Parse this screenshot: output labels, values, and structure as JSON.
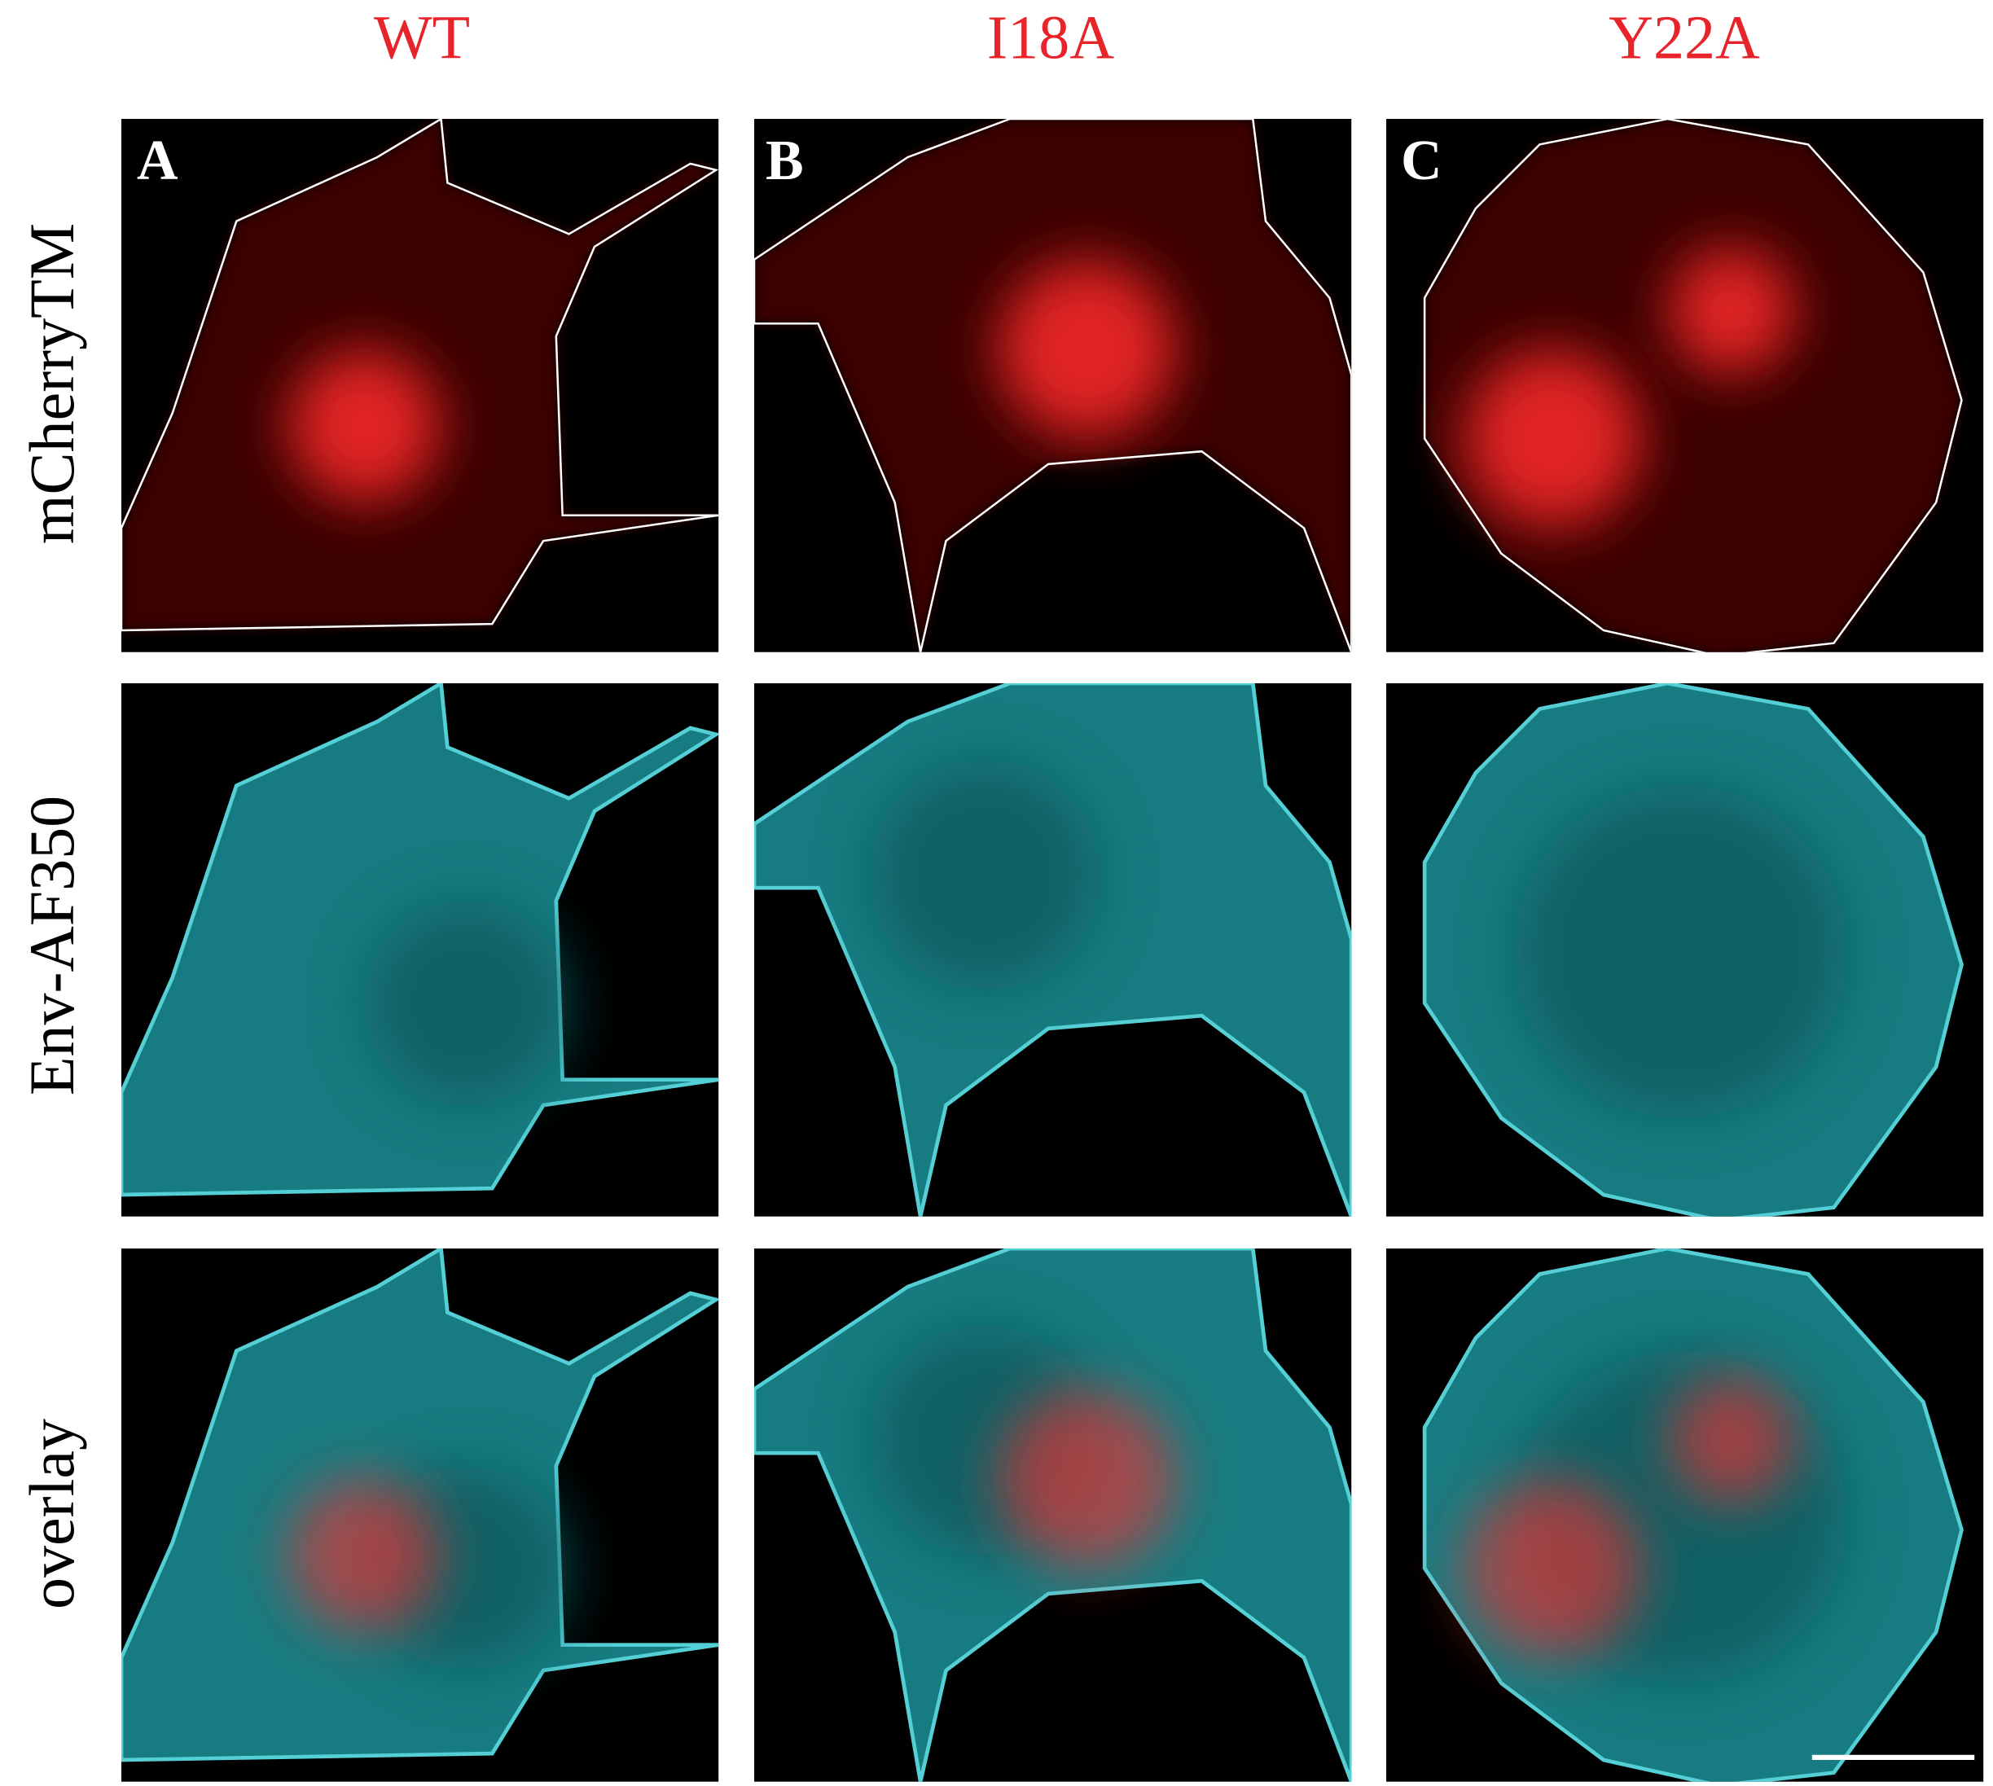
{
  "header": {
    "columns": [
      "WT",
      "I18A",
      "Y22A"
    ]
  },
  "rows": [
    "mCherryTM",
    "Env-AF350",
    "overlay"
  ],
  "panels": {
    "letters": [
      "A",
      "B",
      "C"
    ]
  }
}
